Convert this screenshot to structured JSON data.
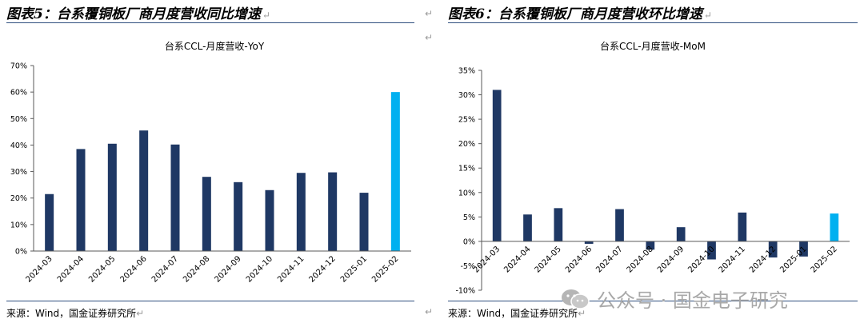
{
  "left_figure": {
    "title": "图表5：台系覆铜板厂商月度营收同比增速",
    "source": "来源：Wind，国金证券研究所"
  },
  "right_figure": {
    "title": "图表6：台系覆铜板厂商月度营收环比增速",
    "source": "来源：Wind，国金证券研究所"
  },
  "return_mark": "↵",
  "watermark": {
    "text": "公众号 · 国金电子研究",
    "icon": "wechat-icon"
  },
  "colors": {
    "bar": "#1f3864",
    "highlight": "#00b0f0",
    "axis": "#595959"
  },
  "chart_data": [
    {
      "type": "bar",
      "title": "台系CCL-月度营收-YoY",
      "categories": [
        "2024-03",
        "2024-04",
        "2024-05",
        "2024-06",
        "2024-07",
        "2024-08",
        "2024-09",
        "2024-10",
        "2024-11",
        "2024-12",
        "2025-01",
        "2025-02"
      ],
      "values": [
        21.5,
        38.5,
        40.5,
        45.5,
        40.2,
        28,
        26,
        23,
        29.5,
        29.7,
        22,
        60
      ],
      "highlight_index": 11,
      "ylim": [
        0,
        70
      ],
      "yticks": [
        0,
        10,
        20,
        30,
        40,
        50,
        60,
        70
      ],
      "ytick_labels": [
        "0%",
        "10%",
        "20%",
        "30%",
        "40%",
        "50%",
        "60%",
        "70%"
      ],
      "grid": false,
      "legend": "none"
    },
    {
      "type": "bar",
      "title": "台系CCL-月度营收-MoM",
      "categories": [
        "2024-03",
        "2024-04",
        "2024-05",
        "2024-06",
        "2024-07",
        "2024-08",
        "2024-09",
        "2024-10",
        "2024-11",
        "2024-12",
        "2025-01",
        "2025-02"
      ],
      "values": [
        31,
        5.5,
        6.8,
        -0.5,
        6.6,
        -1.7,
        2.9,
        -3.7,
        5.9,
        -3.3,
        -3.1,
        5.7
      ],
      "highlight_index": 11,
      "ylim": [
        -10,
        35
      ],
      "yticks": [
        -10,
        -5,
        0,
        5,
        10,
        15,
        20,
        25,
        30,
        35
      ],
      "ytick_labels": [
        "-10%",
        "-5%",
        "0%",
        "5%",
        "10%",
        "15%",
        "20%",
        "25%",
        "30%",
        "35%"
      ],
      "grid": false,
      "legend": "none"
    }
  ]
}
